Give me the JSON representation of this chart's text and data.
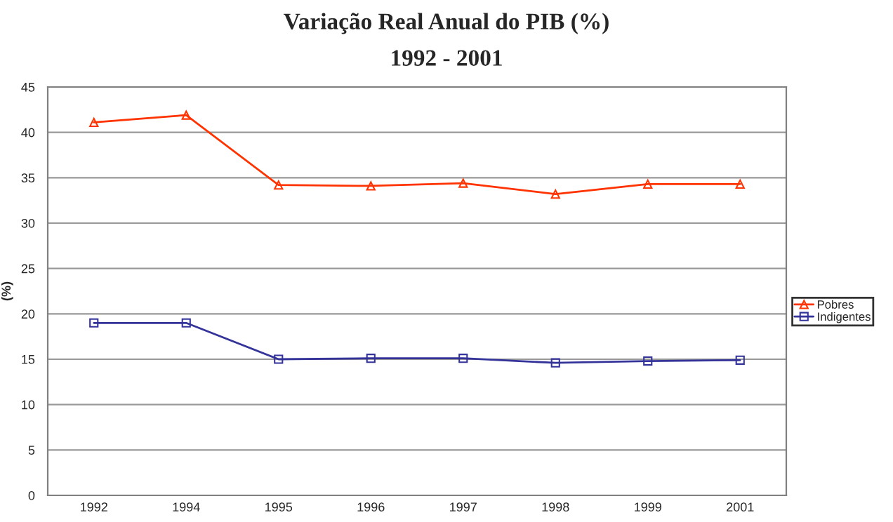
{
  "chart_data": {
    "type": "line",
    "title": "Variação Real Anual do PIB (%)",
    "subtitle": "1992 - 2001",
    "ylabel": "(%)",
    "categories": [
      "1992",
      "1994",
      "1995",
      "1996",
      "1997",
      "1998",
      "1999",
      "2001"
    ],
    "series": [
      {
        "name": "Pobres",
        "color": "#ff3300",
        "marker": "triangle",
        "values": [
          41.1,
          41.9,
          34.2,
          34.1,
          34.4,
          33.2,
          34.3,
          34.3
        ]
      },
      {
        "name": "Indigentes",
        "color": "#333399",
        "marker": "square",
        "values": [
          19,
          19,
          15,
          15.1,
          15.1,
          14.6,
          14.8,
          14.9
        ]
      }
    ],
    "ylim": [
      0,
      45
    ],
    "yticks": [
      0,
      5,
      10,
      15,
      20,
      25,
      30,
      35,
      40,
      45
    ],
    "grid": "y",
    "legend": "right",
    "line_style": "solid"
  }
}
